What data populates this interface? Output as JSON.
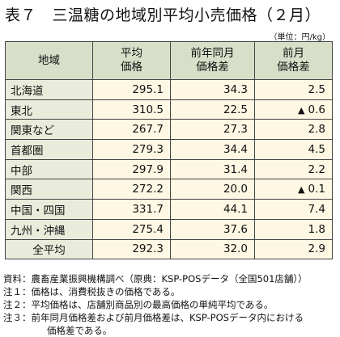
{
  "title": "表７　三温糖の地域別平均小売価格（２月）",
  "unit": "（単位：円/kg）",
  "headers": {
    "region": "地域",
    "avg": [
      "平均",
      "価格"
    ],
    "yoy": [
      "前年同月",
      "価格差"
    ],
    "mom": [
      "前月",
      "価格差"
    ]
  },
  "rows": [
    {
      "region": "北海道",
      "avg": "295.1",
      "yoy": "34.3",
      "mom": "2.5",
      "mom_neg": false
    },
    {
      "region": "東北",
      "avg": "310.5",
      "yoy": "22.5",
      "mom": "0.6",
      "mom_neg": true
    },
    {
      "region": "関東など",
      "avg": "267.7",
      "yoy": "27.3",
      "mom": "2.8",
      "mom_neg": false
    },
    {
      "region": "首都圏",
      "avg": "279.3",
      "yoy": "34.4",
      "mom": "4.5",
      "mom_neg": false
    },
    {
      "region": "中部",
      "avg": "297.9",
      "yoy": "31.4",
      "mom": "2.2",
      "mom_neg": false
    },
    {
      "region": "関西",
      "avg": "272.2",
      "yoy": "20.0",
      "mom": "0.1",
      "mom_neg": true
    },
    {
      "region": "中国・四国",
      "avg": "331.7",
      "yoy": "44.1",
      "mom": "7.4",
      "mom_neg": false
    },
    {
      "region": "九州・沖縄",
      "avg": "275.4",
      "yoy": "37.6",
      "mom": "1.8",
      "mom_neg": false
    },
    {
      "region": "全平均",
      "avg": "292.3",
      "yoy": "32.0",
      "mom": "2.9",
      "mom_neg": false,
      "total": true
    }
  ],
  "negative_marker": "▲",
  "notes": [
    "資料：農畜産業振興機構調べ（原典：KSP-POSデータ（全国501店舗））",
    "注１：価格は、消費税抜きの価格である。",
    "注２：平均価格は、店舗別商品別の最高価格の単純平均である。",
    "注３：前年同月価格差および前月価格差は、KSP-POSデータ内における",
    "価格差である。"
  ]
}
